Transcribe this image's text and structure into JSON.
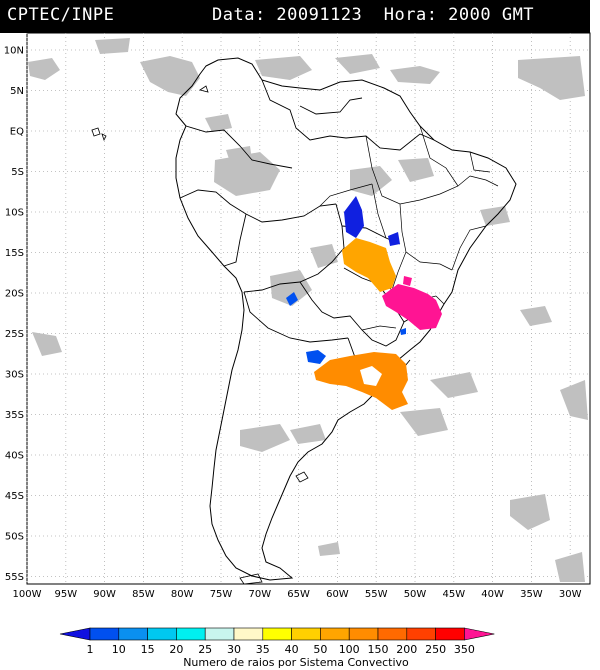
{
  "header": {
    "source": "CPTEC/INPE",
    "datetime": "Data: 20091123  Hora: 2000 GMT"
  },
  "map": {
    "lat_labels": [
      "10N",
      "5N",
      "EQ",
      "5S",
      "10S",
      "15S",
      "20S",
      "25S",
      "30S",
      "35S",
      "40S",
      "45S",
      "50S",
      "55S"
    ],
    "lon_labels": [
      "100W",
      "95W",
      "90W",
      "85W",
      "80W",
      "75W",
      "70W",
      "65W",
      "60W",
      "55W",
      "50W",
      "45W",
      "40W",
      "35W",
      "30W"
    ],
    "cloud_color": "#c0c0c0",
    "border_color": "#000000"
  },
  "legend": {
    "values": [
      "1",
      "10",
      "15",
      "20",
      "25",
      "30",
      "35",
      "40",
      "50",
      "100",
      "150",
      "200",
      "250",
      "350"
    ],
    "colors": [
      "#1010e0",
      "#0050f0",
      "#0a90f0",
      "#00c8f0",
      "#00f0f0",
      "#c8f5ee",
      "#fff8c8",
      "#ffff00",
      "#ffd000",
      "#ffa500",
      "#ff8c00",
      "#ff6a00",
      "#ff4000",
      "#ff0000",
      "#ff1493"
    ],
    "caption": "Numero de raios por Sistema Convectivo"
  }
}
